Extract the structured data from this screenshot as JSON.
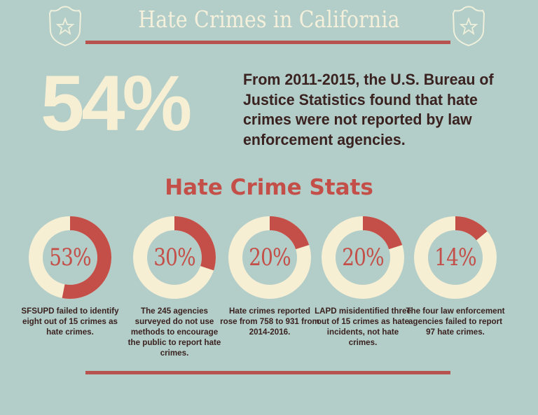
{
  "header": {
    "title": "Hate Crimes in California",
    "left_icon": "police-badge-star-icon",
    "right_icon": "police-badge-star-icon"
  },
  "headline": {
    "percent": "54%",
    "text": "From 2011-2015, the U.S. Bureau of Justice Statistics found that hate crimes were not reported by law enforcement agencies."
  },
  "section": {
    "title": "Hate Crime Stats"
  },
  "colors": {
    "background": "#b3cdc8",
    "accent": "#c44f48",
    "cream": "#f6efd4",
    "text": "#3a2220"
  },
  "chart_data": {
    "type": "pie",
    "title": "Hate Crime Stats",
    "categories": [
      "SFSUPD",
      "245 agencies",
      "Reported hate crimes",
      "LAPD",
      "Four law enforcement agencies"
    ],
    "values": [
      53,
      30,
      20,
      20,
      14
    ],
    "series": [
      {
        "name": "percent",
        "values": [
          53,
          30,
          20,
          20,
          14
        ]
      }
    ]
  },
  "stats": [
    {
      "value": 53,
      "label": "53%",
      "description": "SFSUPD failed to identify eight out of 15 crimes as hate crimes."
    },
    {
      "value": 30,
      "label": "30%",
      "description": "The 245 agencies surveyed do not use methods to encourage the public to report hate crimes."
    },
    {
      "value": 20,
      "label": "20%",
      "description": "Hate crimes reported rose from 758 to 931 from 2014-2016."
    },
    {
      "value": 20,
      "label": "20%",
      "description": "LAPD misidentified three out of 15 crimes as hate incidents, not hate crimes."
    },
    {
      "value": 14,
      "label": "14%",
      "description": "The four law enforcement agencies failed to report 97 hate crimes."
    }
  ]
}
